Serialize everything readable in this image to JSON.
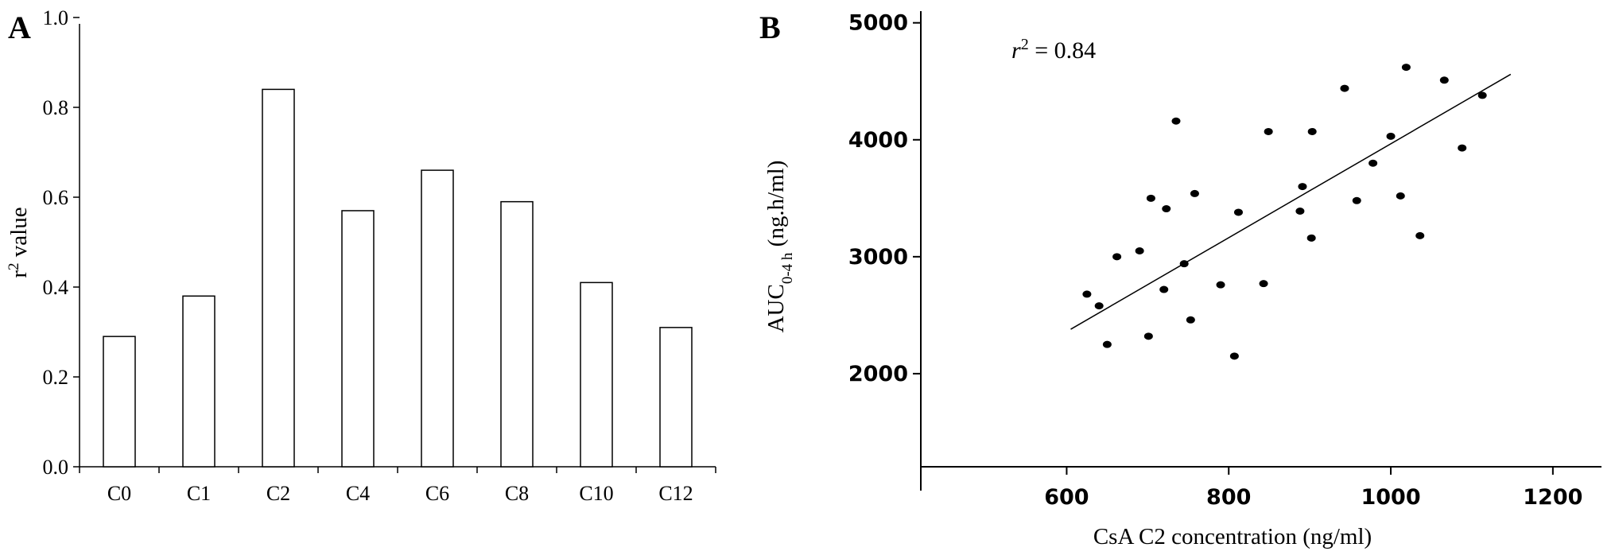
{
  "panels": {
    "a_label": "A",
    "b_label": "B"
  },
  "chart_data": [
    {
      "type": "bar",
      "categories": [
        "C0",
        "C1",
        "C2",
        "C4",
        "C6",
        "C8",
        "C10",
        "C12"
      ],
      "values": [
        0.29,
        0.38,
        0.84,
        0.57,
        0.66,
        0.59,
        0.41,
        0.31
      ],
      "title": "",
      "xlabel": "",
      "ylabel": {
        "base": "r",
        "sup": "2",
        "rest": " value"
      },
      "ylim": [
        0,
        1.0
      ],
      "yticks": [
        "0.0",
        "0.2",
        "0.4",
        "0.6",
        "0.8",
        "1.0"
      ],
      "ytick_values": [
        0,
        0.2,
        0.4,
        0.6,
        0.8,
        1.0
      ],
      "grid": false,
      "bar_fill": "#ffffff",
      "bar_stroke": "#000000"
    },
    {
      "type": "scatter",
      "title": "",
      "xlabel": "CsA C2 concentration (ng/ml)",
      "ylabel": {
        "base": "AUC",
        "sub": "0-4 h",
        "rest": " (ng.h/ml)"
      },
      "xlim": [
        420,
        1260
      ],
      "ylim": [
        1000,
        5100
      ],
      "xticks": [
        "600",
        "800",
        "1000",
        "1200"
      ],
      "xtick_values": [
        600,
        800,
        1000,
        1200
      ],
      "yticks": [
        "2000",
        "3000",
        "4000",
        "5000"
      ],
      "ytick_values": [
        2000,
        3000,
        4000,
        5000
      ],
      "annotation": {
        "var": "r",
        "sup": "2",
        "text": " = 0.84"
      },
      "points": [
        {
          "x": 625,
          "y": 2680
        },
        {
          "x": 640,
          "y": 2580
        },
        {
          "x": 650,
          "y": 2250
        },
        {
          "x": 662,
          "y": 3000
        },
        {
          "x": 690,
          "y": 3050
        },
        {
          "x": 701,
          "y": 2320
        },
        {
          "x": 704,
          "y": 3500
        },
        {
          "x": 720,
          "y": 2720
        },
        {
          "x": 723,
          "y": 3410
        },
        {
          "x": 735,
          "y": 4160
        },
        {
          "x": 745,
          "y": 2940
        },
        {
          "x": 753,
          "y": 2460
        },
        {
          "x": 758,
          "y": 3540
        },
        {
          "x": 790,
          "y": 2760
        },
        {
          "x": 807,
          "y": 2150
        },
        {
          "x": 812,
          "y": 3380
        },
        {
          "x": 843,
          "y": 2770
        },
        {
          "x": 849,
          "y": 4070
        },
        {
          "x": 888,
          "y": 3390
        },
        {
          "x": 891,
          "y": 3600
        },
        {
          "x": 902,
          "y": 3160
        },
        {
          "x": 903,
          "y": 4070
        },
        {
          "x": 943,
          "y": 4440
        },
        {
          "x": 958,
          "y": 3480
        },
        {
          "x": 978,
          "y": 3800
        },
        {
          "x": 1000,
          "y": 4030
        },
        {
          "x": 1012,
          "y": 3520
        },
        {
          "x": 1019,
          "y": 4620
        },
        {
          "x": 1036,
          "y": 3180
        },
        {
          "x": 1066,
          "y": 4510
        },
        {
          "x": 1088,
          "y": 3930
        },
        {
          "x": 1113,
          "y": 4380
        }
      ],
      "fit_line": {
        "x": [
          605,
          1148
        ],
        "y": [
          2380,
          4560
        ]
      },
      "grid": false,
      "marker_color": "#000000"
    }
  ]
}
